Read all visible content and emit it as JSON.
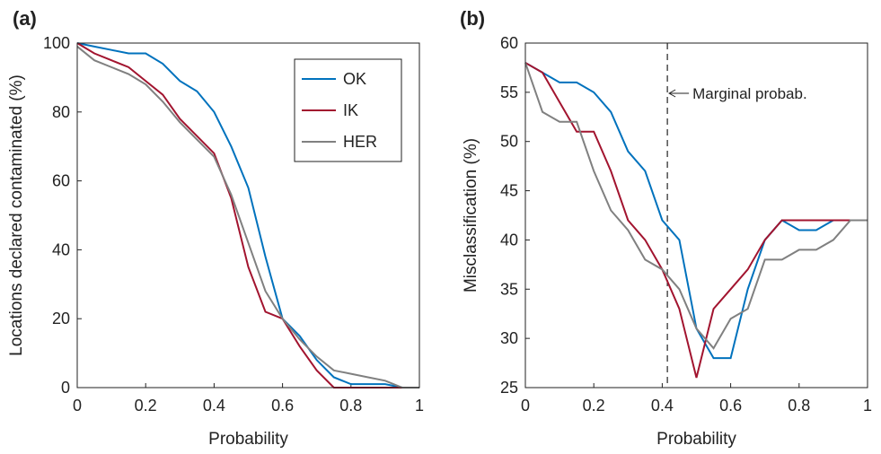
{
  "chart_data": [
    {
      "type": "line",
      "panel_label": "(a)",
      "xlabel": "Probability",
      "ylabel": "Locations declared contaminated (%)",
      "x": [
        0,
        0.05,
        0.1,
        0.15,
        0.2,
        0.25,
        0.3,
        0.35,
        0.4,
        0.45,
        0.5,
        0.55,
        0.6,
        0.65,
        0.7,
        0.75,
        0.8,
        0.85,
        0.9,
        0.95,
        1
      ],
      "series": [
        {
          "name": "OK",
          "color": "#0072bd",
          "values": [
            100,
            99,
            98,
            97,
            97,
            94,
            89,
            86,
            80,
            70,
            58,
            38,
            20,
            15,
            8,
            3,
            1,
            1,
            1,
            0,
            0
          ]
        },
        {
          "name": "IK",
          "color": "#a2142f",
          "values": [
            100,
            97,
            95,
            93,
            89,
            85,
            78,
            73,
            68,
            55,
            35,
            22,
            20,
            12,
            5,
            0,
            0,
            0,
            0,
            0,
            0
          ]
        },
        {
          "name": "HER",
          "color": "#808080",
          "values": [
            99,
            95,
            93,
            91,
            88,
            83,
            77,
            72,
            67,
            56,
            42,
            28,
            20,
            14,
            9,
            5,
            4,
            3,
            2,
            0,
            0
          ]
        }
      ],
      "xlim": [
        0,
        1
      ],
      "xticks": [
        0,
        0.2,
        0.4,
        0.6,
        0.8,
        1
      ],
      "ylim": [
        0,
        100
      ],
      "yticks": [
        0,
        20,
        40,
        60,
        80,
        100
      ],
      "legend": "upper right"
    },
    {
      "type": "line",
      "panel_label": "(b)",
      "xlabel": "Probability",
      "ylabel": "Misclassification (%)",
      "x": [
        0,
        0.05,
        0.1,
        0.15,
        0.2,
        0.25,
        0.3,
        0.35,
        0.4,
        0.45,
        0.5,
        0.55,
        0.6,
        0.65,
        0.7,
        0.75,
        0.8,
        0.85,
        0.9,
        0.95,
        1
      ],
      "series": [
        {
          "color": "#0072bd",
          "values": [
            58,
            57,
            56,
            56,
            55,
            53,
            49,
            47,
            42,
            40,
            31,
            28,
            28,
            35,
            40,
            42,
            41,
            41,
            42,
            42,
            42
          ]
        },
        {
          "color": "#a2142f",
          "values": [
            58,
            57,
            54,
            51,
            51,
            47,
            42,
            40,
            37,
            33,
            26,
            33,
            35,
            37,
            40,
            42,
            42,
            42,
            42,
            42,
            42
          ]
        },
        {
          "color": "#808080",
          "values": [
            58,
            53,
            52,
            52,
            47,
            43,
            41,
            38,
            37,
            35,
            31,
            29,
            32,
            33,
            38,
            38,
            39,
            39,
            40,
            42,
            42
          ]
        }
      ],
      "xlim": [
        0,
        1
      ],
      "xticks": [
        0,
        0.2,
        0.4,
        0.6,
        0.8,
        1
      ],
      "ylim": [
        25,
        60
      ],
      "yticks": [
        25,
        30,
        35,
        40,
        45,
        50,
        55,
        60
      ],
      "vline": {
        "x": 0.415,
        "label": "Marginal probab."
      }
    }
  ]
}
